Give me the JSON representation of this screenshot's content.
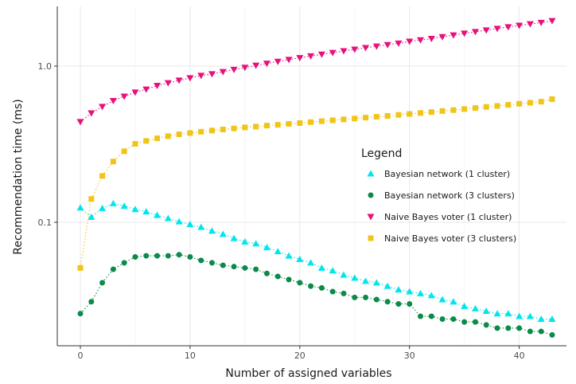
{
  "chart_data": {
    "type": "scatter",
    "title": "",
    "xlabel": "Number of assigned variables",
    "ylabel": "Recommendation time (ms)",
    "xlim": [
      -2,
      44
    ],
    "ylim": [
      0.018,
      2.6
    ],
    "y_scale": "log",
    "x_ticks": [
      0,
      10,
      20,
      30,
      40
    ],
    "x_tick_labels": [
      "0",
      "10",
      "20",
      "30",
      "40"
    ],
    "y_ticks": [
      0.1,
      1.0
    ],
    "y_tick_labels": [
      "0.1",
      "1.0"
    ],
    "grid": true,
    "legend": {
      "title": "Legend",
      "position": "right"
    },
    "x": [
      0,
      1,
      2,
      3,
      4,
      5,
      6,
      7,
      8,
      9,
      10,
      11,
      12,
      13,
      14,
      15,
      16,
      17,
      18,
      19,
      20,
      21,
      22,
      23,
      24,
      25,
      26,
      27,
      28,
      29,
      30,
      31,
      32,
      33,
      34,
      35,
      36,
      37,
      38,
      39,
      40,
      41,
      42,
      43
    ],
    "series": [
      {
        "name": "Bayesian network (1 cluster)",
        "color": "#00e5ee",
        "marker": "triangle-up",
        "values": [
          0.124,
          0.108,
          0.123,
          0.132,
          0.127,
          0.121,
          0.117,
          0.111,
          0.106,
          0.101,
          0.097,
          0.093,
          0.088,
          0.084,
          0.079,
          0.075,
          0.073,
          0.069,
          0.065,
          0.061,
          0.058,
          0.055,
          0.051,
          0.049,
          0.046,
          0.044,
          0.042,
          0.041,
          0.039,
          0.037,
          0.036,
          0.035,
          0.034,
          0.032,
          0.031,
          0.029,
          0.028,
          0.027,
          0.026,
          0.026,
          0.025,
          0.025,
          0.024,
          0.024
        ]
      },
      {
        "name": "Bayesian network (3 clusters)",
        "color": "#0b8a4a",
        "marker": "circle",
        "values": [
          0.026,
          0.031,
          0.041,
          0.05,
          0.055,
          0.06,
          0.061,
          0.061,
          0.061,
          0.062,
          0.06,
          0.057,
          0.055,
          0.053,
          0.052,
          0.051,
          0.05,
          0.047,
          0.045,
          0.043,
          0.041,
          0.039,
          0.038,
          0.036,
          0.035,
          0.033,
          0.033,
          0.032,
          0.031,
          0.03,
          0.03,
          0.025,
          0.025,
          0.024,
          0.024,
          0.023,
          0.023,
          0.022,
          0.021,
          0.021,
          0.021,
          0.02,
          0.02,
          0.019
        ]
      },
      {
        "name": "Naive Bayes voter (1 cluster)",
        "color": "#e6117a",
        "marker": "triangle-down",
        "values": [
          0.44,
          0.5,
          0.55,
          0.6,
          0.64,
          0.68,
          0.71,
          0.75,
          0.78,
          0.81,
          0.84,
          0.87,
          0.89,
          0.92,
          0.95,
          0.98,
          1.01,
          1.04,
          1.07,
          1.1,
          1.13,
          1.16,
          1.19,
          1.22,
          1.25,
          1.28,
          1.31,
          1.34,
          1.37,
          1.4,
          1.44,
          1.47,
          1.5,
          1.54,
          1.58,
          1.62,
          1.66,
          1.7,
          1.74,
          1.78,
          1.82,
          1.86,
          1.9,
          1.95
        ]
      },
      {
        "name": "Naive Bayes voter (3 clusters)",
        "color": "#f0c419",
        "marker": "square",
        "values": [
          0.051,
          0.141,
          0.198,
          0.245,
          0.285,
          0.318,
          0.332,
          0.345,
          0.356,
          0.366,
          0.373,
          0.38,
          0.387,
          0.393,
          0.399,
          0.405,
          0.41,
          0.416,
          0.421,
          0.427,
          0.432,
          0.438,
          0.444,
          0.45,
          0.456,
          0.462,
          0.468,
          0.474,
          0.48,
          0.487,
          0.494,
          0.501,
          0.508,
          0.516,
          0.523,
          0.531,
          0.539,
          0.548,
          0.556,
          0.565,
          0.574,
          0.583,
          0.592,
          0.615
        ]
      }
    ]
  }
}
